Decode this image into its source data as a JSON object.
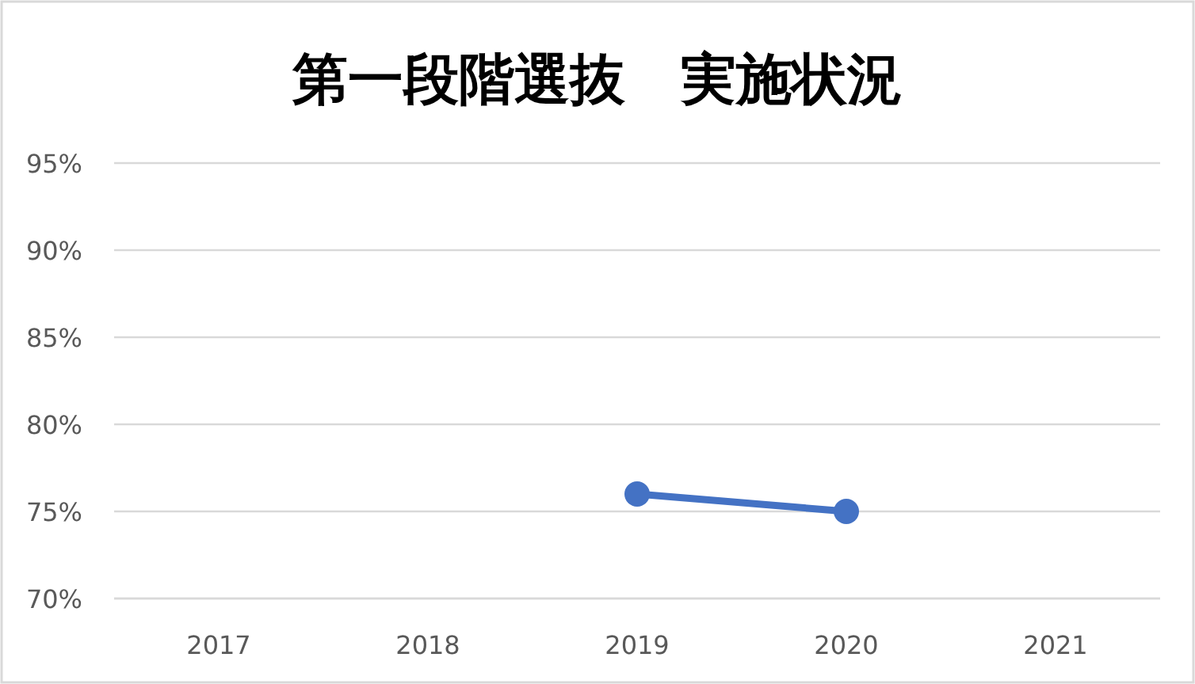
{
  "chart_data": {
    "type": "line",
    "title": "第一段階選抜　実施状況",
    "categories": [
      "2017",
      "2018",
      "2019",
      "2020",
      "2021"
    ],
    "series": [
      {
        "color": "#4472c4",
        "values": [
          null,
          null,
          76,
          75,
          null
        ]
      }
    ],
    "ylim": [
      70,
      95
    ],
    "yticks": [
      {
        "value": 70,
        "label": "70%"
      },
      {
        "value": 75,
        "label": "75%"
      },
      {
        "value": 80,
        "label": "80%"
      },
      {
        "value": 85,
        "label": "85%"
      },
      {
        "value": 90,
        "label": "90%"
      },
      {
        "value": 95,
        "label": "95%"
      }
    ],
    "grid": "y",
    "marker": "circle"
  }
}
